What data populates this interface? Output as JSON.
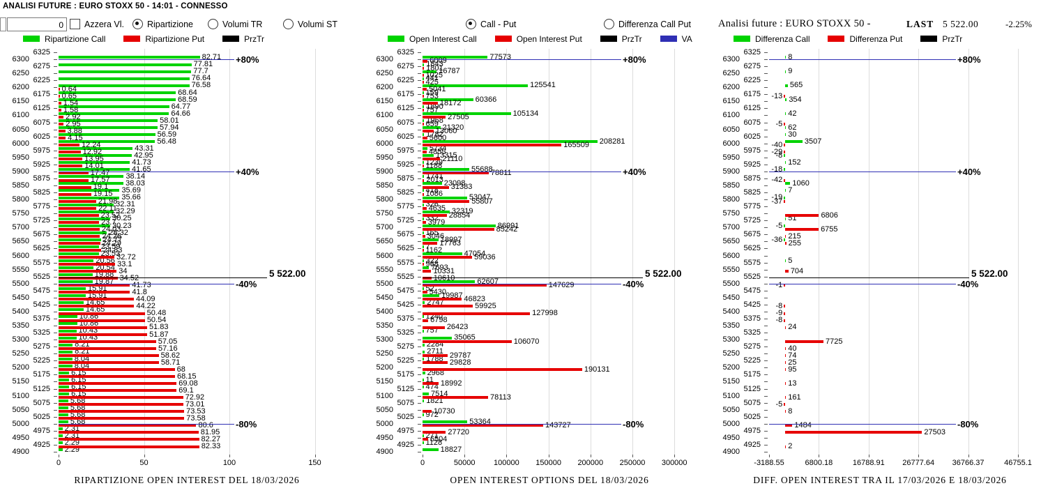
{
  "window": {
    "title": "ANALISI FUTURE : EURO STOXX 50 - 14:01 - CONNESSO"
  },
  "controls": {
    "spin_value": "0",
    "azzera": {
      "label": "Azzera Vl.",
      "checked": false
    },
    "group1": [
      {
        "label": "Ripartizione",
        "selected": true
      },
      {
        "label": "Volumi TR",
        "selected": false
      },
      {
        "label": "Volumi ST",
        "selected": false
      }
    ],
    "group2": [
      {
        "label": "Call - Put",
        "selected": true
      },
      {
        "label": "Differenza Call Put",
        "selected": false
      }
    ]
  },
  "panel3_header": {
    "title": "Analisi future : EURO STOXX 50 -",
    "last_label": "LAST",
    "last_value": "5 522.00",
    "change": "-2.25%"
  },
  "colors": {
    "call": "#00d300",
    "put": "#e60000",
    "prztr": "#000000",
    "va": "#2f2fb4",
    "grid": "#dcdcdc"
  },
  "chart_data": [
    {
      "type": "bar",
      "orientation": "horizontal",
      "caption": "RIPARTIZIONE OPEN INTEREST DEL 18/03/2026",
      "legend": [
        {
          "label": "Ripartizione Call",
          "color": "#00d300"
        },
        {
          "label": "Ripartizione Put",
          "color": "#e60000"
        },
        {
          "label": "PrzTr",
          "color": "#000000"
        }
      ],
      "x_ticks": [
        "0",
        "50",
        "100",
        "150"
      ],
      "strikes": [
        6325,
        6300,
        6275,
        6250,
        6225,
        6200,
        6175,
        6150,
        6125,
        6100,
        6075,
        6050,
        6025,
        6000,
        5975,
        5950,
        5925,
        5900,
        5875,
        5850,
        5825,
        5800,
        5775,
        5750,
        5725,
        5700,
        5675,
        5650,
        5625,
        5600,
        5575,
        5550,
        5525,
        5500,
        5475,
        5450,
        5425,
        5400,
        5375,
        5350,
        5325,
        5300,
        5275,
        5250,
        5225,
        5200,
        5175,
        5150,
        5125,
        5100,
        5075,
        5050,
        5025,
        5000,
        4975,
        4950,
        4925,
        4900
      ],
      "series": [
        {
          "name": "Ripartizione Call",
          "color": "#00d300",
          "values": [
            null,
            82.71,
            77.81,
            77.7,
            76.64,
            76.58,
            68.64,
            68.59,
            64.77,
            64.66,
            58.01,
            57.94,
            56.59,
            56.48,
            43.31,
            42.95,
            41.73,
            41.65,
            38.14,
            38.03,
            35.69,
            35.66,
            32.31,
            32.29,
            30.25,
            30.23,
            28.32,
            24.77,
            23.59,
            23.53,
            20.56,
            20.54,
            19.88,
            19.87,
            15.91,
            15.91,
            14.65,
            14.65,
            10.86,
            10.86,
            10.43,
            10.43,
            8.21,
            8.21,
            8.04,
            8.04,
            6.15,
            6.15,
            6.15,
            6.15,
            5.68,
            5.68,
            5.68,
            5.68,
            2.31,
            2.31,
            2.29,
            2.29
          ]
        },
        {
          "name": "Ripartizione Put",
          "color": "#e60000",
          "values": [
            null,
            null,
            null,
            null,
            null,
            0.64,
            0.65,
            1.54,
            1.58,
            2.92,
            2.95,
            3.88,
            4.15,
            12.24,
            12.92,
            13.95,
            14.01,
            17.47,
            17.57,
            19.1,
            19.15,
            21.98,
            22.11,
            23.52,
            23.7,
            24.03,
            24.26,
            24.29,
            24.83,
            32.72,
            33.1,
            34,
            34.52,
            41.73,
            41.8,
            44.09,
            44.22,
            50.48,
            50.54,
            51.83,
            51.87,
            57.05,
            57.16,
            58.62,
            58.71,
            68,
            68.15,
            69.08,
            69.1,
            72.92,
            73.01,
            73.53,
            73.58,
            80.6,
            81.95,
            82.27,
            82.33,
            null
          ]
        }
      ],
      "ref_lines": [
        {
          "label": "+80%",
          "strike": 6300
        },
        {
          "label": "+40%",
          "strike": 5900
        },
        {
          "label": "-40%",
          "strike": 5500
        },
        {
          "label": "-80%",
          "strike": 5000
        }
      ],
      "prz_line": {
        "label": "5 522.00",
        "value": 5522
      }
    },
    {
      "type": "bar",
      "orientation": "horizontal",
      "caption": "OPEN INTEREST OPTIONS DEL 18/03/2026",
      "legend": [
        {
          "label": "Open Interest Call",
          "color": "#00d300"
        },
        {
          "label": "Open Interest Put",
          "color": "#e60000"
        },
        {
          "label": "PrzTr",
          "color": "#000000"
        },
        {
          "label": "VA",
          "color": "#2f2fb4"
        }
      ],
      "x_ticks": [
        "0",
        "50000",
        "100000",
        "150000",
        "200000",
        "250000",
        "300000"
      ],
      "strikes": [
        6325,
        6300,
        6275,
        6250,
        6225,
        6200,
        6175,
        6150,
        6125,
        6100,
        6075,
        6050,
        6025,
        6000,
        5975,
        5950,
        5925,
        5900,
        5875,
        5850,
        5825,
        5800,
        5775,
        5750,
        5725,
        5700,
        5675,
        5650,
        5625,
        5600,
        5575,
        5550,
        5525,
        5500,
        5475,
        5450,
        5425,
        5400,
        5375,
        5350,
        5325,
        5300,
        5275,
        5250,
        5225,
        5200,
        5175,
        5150,
        5125,
        5100,
        5075,
        5050,
        5025,
        5000,
        4975,
        4950,
        4925,
        4900
      ],
      "series": [
        {
          "name": "Open Interest Call",
          "color": "#00d300",
          "values": [
            null,
            77573,
            1843,
            16787,
            441,
            125541,
            159,
            60366,
            1890,
            105134,
            1968,
            21320,
            1782,
            208281,
            5734,
            13315,
            1239,
            55688,
            1741,
            23098,
            418,
            53047,
            326,
            32319,
            332,
            86991,
            165,
            18997,
            7,
            47054,
            322,
            7693,
            null,
            62607,
            52,
            19987,
            2747,
            null,
            1240,
            null,
            757,
            35065,
            2284,
            2711,
            1788,
            null,
            2968,
            11,
            474,
            7514,
            1821,
            null,
            972,
            53364,
            null,
            271,
            1128,
            18827
          ]
        },
        {
          "name": "Open Interest Put",
          "color": "#e60000",
          "values": [
            null,
            6009,
            1801,
            1025,
            425,
            5041,
            753,
            18172,
            757,
            27505,
            659,
            13060,
            5600,
            165509,
            4855,
            21110,
            1188,
            78811,
            2013,
            31383,
            1086,
            55807,
            4635,
            28854,
            3979,
            85242,
            3046,
            17763,
            1162,
            59036,
            968,
            10331,
            10610,
            147629,
            5430,
            46823,
            59925,
            127998,
            6798,
            26423,
            null,
            106070,
            null,
            29787,
            29828,
            190131,
            null,
            18992,
            null,
            78113,
            null,
            10730,
            null,
            143727,
            27720,
            6504,
            null,
            null
          ]
        }
      ],
      "ref_lines": [
        {
          "label": "+80%",
          "strike": 6300
        },
        {
          "label": "+40%",
          "strike": 5900
        },
        {
          "label": "-40%",
          "strike": 5500
        },
        {
          "label": "-80%",
          "strike": 5000
        }
      ],
      "prz_line": {
        "label": "5 522.00",
        "value": 5522
      }
    },
    {
      "type": "bar",
      "orientation": "horizontal",
      "caption": "DIFF. OPEN INTEREST TRA IL 17/03/2026 E 18/03/2026",
      "legend": [
        {
          "label": "Differenza Call",
          "color": "#00d300"
        },
        {
          "label": "Differenza Put",
          "color": "#e60000"
        },
        {
          "label": "PrzTr",
          "color": "#000000"
        }
      ],
      "x_ticks": [
        "-3188.55",
        "6800.18",
        "16788.91",
        "26777.64",
        "36766.37",
        "46755.1"
      ],
      "strikes": [
        6325,
        6300,
        6275,
        6250,
        6225,
        6200,
        6175,
        6150,
        6125,
        6100,
        6075,
        6050,
        6025,
        6000,
        5975,
        5950,
        5925,
        5900,
        5875,
        5850,
        5825,
        5800,
        5775,
        5750,
        5725,
        5700,
        5675,
        5650,
        5625,
        5600,
        5575,
        5550,
        5525,
        5500,
        5475,
        5450,
        5425,
        5400,
        5375,
        5350,
        5325,
        5300,
        5275,
        5250,
        5225,
        5200,
        5175,
        5150,
        5125,
        5100,
        5075,
        5050,
        5025,
        5000,
        4975,
        4950,
        4925,
        4900
      ],
      "series": [
        {
          "name": "Differenza Call",
          "color": "#00d300",
          "values": [
            null,
            8,
            null,
            9,
            null,
            565,
            null,
            354,
            null,
            42,
            null,
            62,
            30,
            3507,
            null,
            -8,
            152,
            -18,
            null,
            1060,
            7,
            -19,
            null,
            null,
            51,
            -5,
            null,
            -36,
            null,
            null,
            5,
            null,
            null,
            null,
            null,
            null,
            null,
            null,
            null,
            null,
            null,
            null,
            null,
            null,
            null,
            null,
            null,
            null,
            null,
            null,
            null,
            null,
            null,
            null,
            null,
            null,
            null,
            null
          ]
        },
        {
          "name": "Differenza Put",
          "color": "#e60000",
          "values": [
            null,
            null,
            null,
            null,
            null,
            null,
            -13,
            null,
            null,
            null,
            -5,
            null,
            null,
            -40,
            -29,
            null,
            null,
            null,
            -42,
            null,
            null,
            -37,
            null,
            6806,
            null,
            6755,
            215,
            255,
            null,
            null,
            null,
            704,
            null,
            -1,
            null,
            null,
            -8,
            -9,
            -8,
            24,
            null,
            7725,
            40,
            74,
            25,
            95,
            null,
            13,
            null,
            161,
            -5,
            8,
            null,
            1484,
            27503,
            null,
            2,
            null
          ]
        }
      ],
      "ref_lines": [
        {
          "label": "+80%",
          "strike": 6300
        },
        {
          "label": "+40%",
          "strike": 5900
        },
        {
          "label": "-40%",
          "strike": 5500
        },
        {
          "label": "-80%",
          "strike": 5000
        }
      ],
      "prz_line": {
        "label": "5 522.00",
        "value": 5522
      }
    }
  ]
}
